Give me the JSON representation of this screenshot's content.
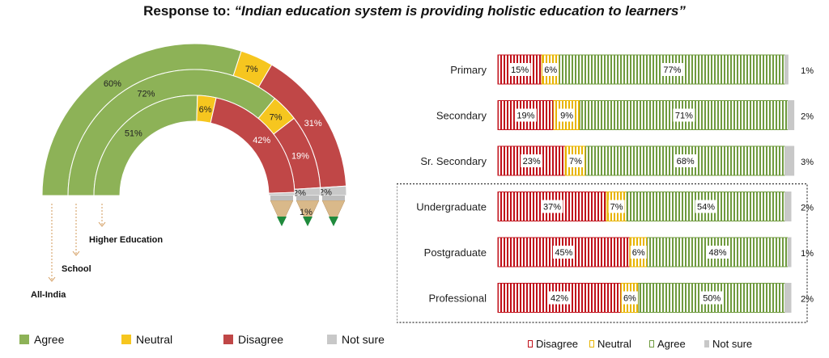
{
  "title_prefix": "Response to: ",
  "title_quote": "“Indian education system is providing holistic education to learners”",
  "colors": {
    "agree": "#8db257",
    "neutral": "#f6c61f",
    "disagree": "#c04747",
    "not_sure": "#c8c8c8",
    "agree_dark": "#6f9a3e",
    "disagree_dark": "#c0101a",
    "neutral_dark": "#e8b400",
    "not_sure_dark": "#a8a8a8"
  },
  "legend_left": [
    "Agree",
    "Neutral",
    "Disagree",
    "Not sure"
  ],
  "legend_right": [
    "Disagree",
    "Neutral",
    "Agree",
    "Not sure"
  ],
  "chart_data": [
    {
      "type": "pie",
      "subtype": "half-donut",
      "categories": [
        "Agree",
        "Neutral",
        "Disagree",
        "Not sure"
      ],
      "series": [
        {
          "name": "All-India",
          "values": [
            60,
            7,
            31,
            2
          ]
        },
        {
          "name": "School",
          "values": [
            72,
            7,
            19,
            2
          ]
        },
        {
          "name": "Higher Education",
          "values": [
            51,
            6,
            42,
            1
          ]
        }
      ]
    },
    {
      "type": "bar",
      "orientation": "horizontal",
      "stacked": true,
      "categories": [
        "Primary",
        "Secondary",
        "Sr. Secondary",
        "Undergraduate",
        "Postgraduate",
        "Professional"
      ],
      "series": [
        {
          "name": "Disagree",
          "values": [
            15,
            19,
            23,
            37,
            45,
            42
          ]
        },
        {
          "name": "Neutral",
          "values": [
            6,
            9,
            7,
            7,
            6,
            6
          ]
        },
        {
          "name": "Agree",
          "values": [
            77,
            71,
            68,
            54,
            48,
            50
          ]
        },
        {
          "name": "Not sure",
          "values": [
            1,
            2,
            3,
            2,
            1,
            2
          ]
        }
      ],
      "labels": [
        "15%",
        "19%",
        "23%",
        "37%",
        "45%",
        "42%",
        "6%",
        "9%",
        "7%",
        "7%",
        "6%",
        "6%",
        "77%",
        "71%",
        "68%",
        "54%",
        "48%",
        "50%",
        "1%",
        "2%",
        "3%",
        "2%",
        "1%",
        "2%"
      ]
    }
  ]
}
